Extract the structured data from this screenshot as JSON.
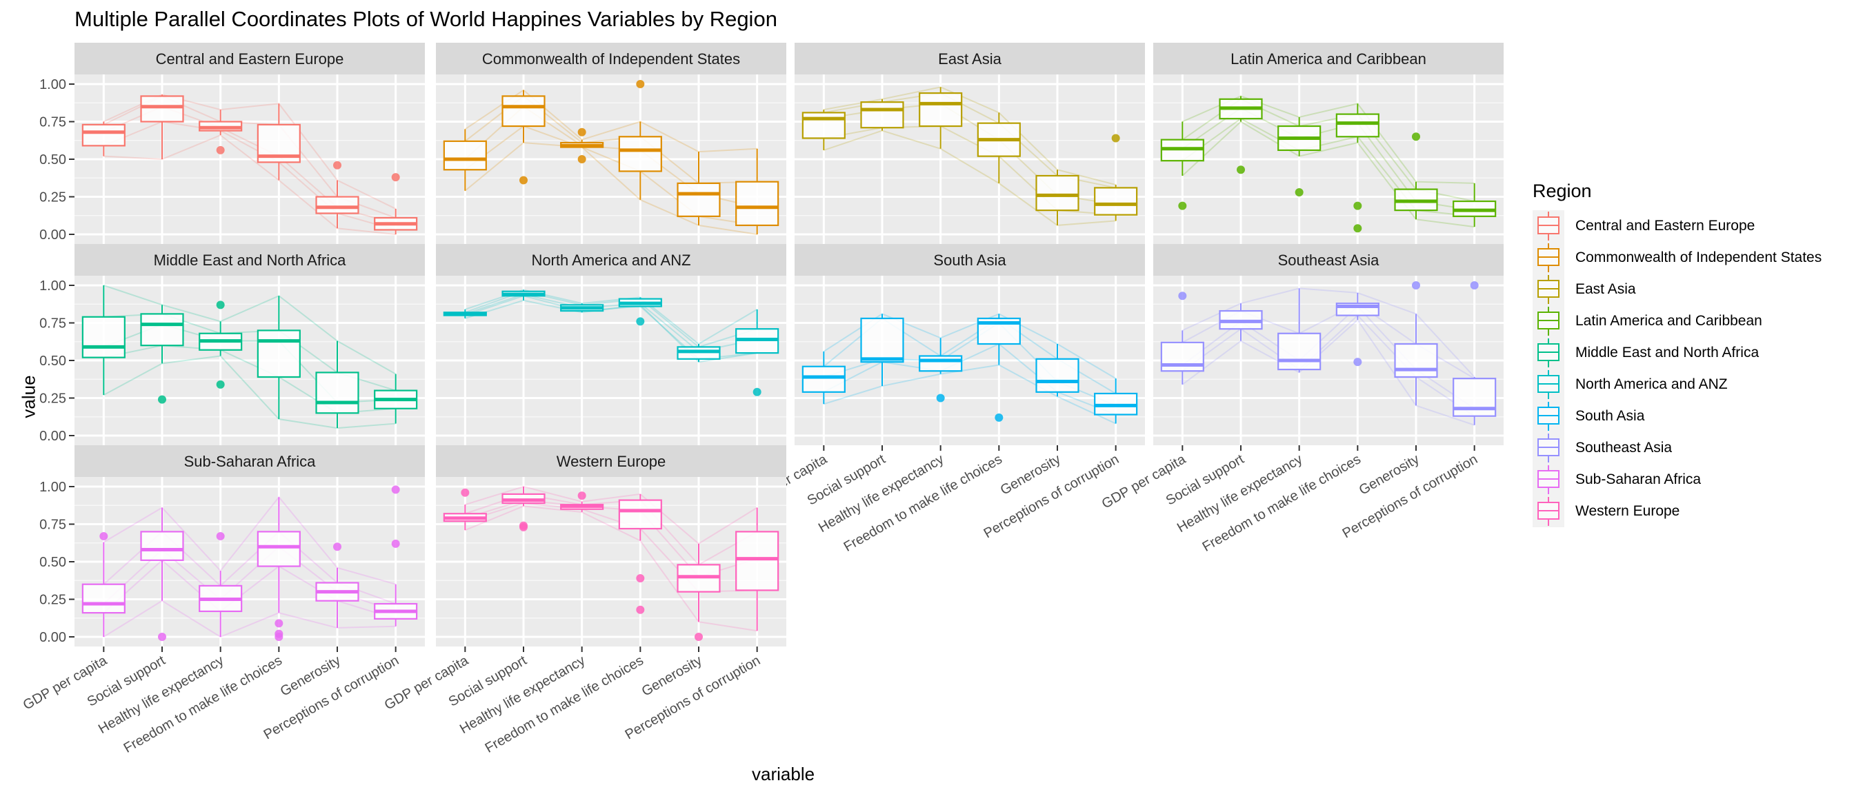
{
  "chart_data": {
    "type": "box",
    "title": "Multiple Parallel Coordinates Plots of World Happines Variables by Region",
    "xlabel": "variable",
    "ylabel": "value",
    "ylim": [
      0,
      1
    ],
    "yticks": [
      "0.00",
      "0.25",
      "0.50",
      "0.75",
      "1.00"
    ],
    "categories": [
      "GDP per capita",
      "Social support",
      "Healthy life expectancy",
      "Freedom to make life choices",
      "Generosity",
      "Perceptions of corruption"
    ],
    "legend": {
      "title": "Region",
      "position": "right"
    },
    "grid": true,
    "facets": [
      {
        "name": "Central and Eastern Europe",
        "color": "#F8766D",
        "boxes": [
          {
            "lo": 0.52,
            "q1": 0.59,
            "med": 0.68,
            "q3": 0.73,
            "hi": 0.75,
            "out": []
          },
          {
            "lo": 0.5,
            "q1": 0.75,
            "med": 0.85,
            "q3": 0.92,
            "hi": 0.93,
            "out": []
          },
          {
            "lo": 0.66,
            "q1": 0.69,
            "med": 0.71,
            "q3": 0.75,
            "hi": 0.83,
            "out": [
              0.56
            ]
          },
          {
            "lo": 0.36,
            "q1": 0.48,
            "med": 0.52,
            "q3": 0.73,
            "hi": 0.87,
            "out": []
          },
          {
            "lo": 0.04,
            "q1": 0.14,
            "med": 0.18,
            "q3": 0.25,
            "hi": 0.36,
            "out": [
              0.46
            ]
          },
          {
            "lo": 0.0,
            "q1": 0.03,
            "med": 0.07,
            "q3": 0.11,
            "hi": 0.17,
            "out": [
              0.38
            ]
          }
        ]
      },
      {
        "name": "Commonwealth of Independent States",
        "color": "#DE8C00",
        "boxes": [
          {
            "lo": 0.29,
            "q1": 0.43,
            "med": 0.5,
            "q3": 0.62,
            "hi": 0.7,
            "out": []
          },
          {
            "lo": 0.61,
            "q1": 0.72,
            "med": 0.85,
            "q3": 0.92,
            "hi": 0.96,
            "out": [
              0.36
            ]
          },
          {
            "lo": 0.58,
            "q1": 0.58,
            "med": 0.59,
            "q3": 0.61,
            "hi": 0.63,
            "out": [
              0.68,
              0.5
            ]
          },
          {
            "lo": 0.23,
            "q1": 0.42,
            "med": 0.56,
            "q3": 0.65,
            "hi": 0.75,
            "out": [
              1.0
            ]
          },
          {
            "lo": 0.06,
            "q1": 0.12,
            "med": 0.27,
            "q3": 0.34,
            "hi": 0.55,
            "out": []
          },
          {
            "lo": 0.0,
            "q1": 0.06,
            "med": 0.18,
            "q3": 0.35,
            "hi": 0.57,
            "out": []
          }
        ]
      },
      {
        "name": "East Asia",
        "color": "#B79F00",
        "boxes": [
          {
            "lo": 0.56,
            "q1": 0.64,
            "med": 0.77,
            "q3": 0.81,
            "hi": 0.83,
            "out": []
          },
          {
            "lo": 0.69,
            "q1": 0.71,
            "med": 0.83,
            "q3": 0.88,
            "hi": 0.9,
            "out": []
          },
          {
            "lo": 0.57,
            "q1": 0.72,
            "med": 0.87,
            "q3": 0.94,
            "hi": 0.98,
            "out": []
          },
          {
            "lo": 0.34,
            "q1": 0.52,
            "med": 0.63,
            "q3": 0.74,
            "hi": 0.81,
            "out": []
          },
          {
            "lo": 0.06,
            "q1": 0.16,
            "med": 0.26,
            "q3": 0.39,
            "hi": 0.43,
            "out": []
          },
          {
            "lo": 0.09,
            "q1": 0.13,
            "med": 0.2,
            "q3": 0.31,
            "hi": 0.33,
            "out": [
              0.64
            ]
          }
        ]
      },
      {
        "name": "Latin America and Caribbean",
        "color": "#5BB300",
        "boxes": [
          {
            "lo": 0.39,
            "q1": 0.49,
            "med": 0.57,
            "q3": 0.63,
            "hi": 0.75,
            "out": [
              0.19
            ]
          },
          {
            "lo": 0.75,
            "q1": 0.77,
            "med": 0.84,
            "q3": 0.9,
            "hi": 0.92,
            "out": [
              0.43
            ]
          },
          {
            "lo": 0.52,
            "q1": 0.56,
            "med": 0.64,
            "q3": 0.72,
            "hi": 0.78,
            "out": [
              0.28
            ]
          },
          {
            "lo": 0.61,
            "q1": 0.65,
            "med": 0.74,
            "q3": 0.8,
            "hi": 0.87,
            "out": [
              0.19,
              0.04
            ]
          },
          {
            "lo": 0.1,
            "q1": 0.16,
            "med": 0.22,
            "q3": 0.3,
            "hi": 0.35,
            "out": [
              0.65
            ]
          },
          {
            "lo": 0.05,
            "q1": 0.12,
            "med": 0.16,
            "q3": 0.22,
            "hi": 0.34,
            "out": []
          }
        ]
      },
      {
        "name": "Middle East and North Africa",
        "color": "#00C08B",
        "boxes": [
          {
            "lo": 0.27,
            "q1": 0.52,
            "med": 0.59,
            "q3": 0.79,
            "hi": 1.0,
            "out": []
          },
          {
            "lo": 0.48,
            "q1": 0.6,
            "med": 0.74,
            "q3": 0.81,
            "hi": 0.87,
            "out": [
              0.24
            ]
          },
          {
            "lo": 0.53,
            "q1": 0.57,
            "med": 0.63,
            "q3": 0.68,
            "hi": 0.76,
            "out": [
              0.87,
              0.34
            ]
          },
          {
            "lo": 0.11,
            "q1": 0.39,
            "med": 0.63,
            "q3": 0.7,
            "hi": 0.93,
            "out": []
          },
          {
            "lo": 0.05,
            "q1": 0.15,
            "med": 0.22,
            "q3": 0.42,
            "hi": 0.63,
            "out": []
          },
          {
            "lo": 0.08,
            "q1": 0.18,
            "med": 0.24,
            "q3": 0.3,
            "hi": 0.41,
            "out": []
          }
        ]
      },
      {
        "name": "North America and ANZ",
        "color": "#00BFC4",
        "boxes": [
          {
            "lo": 0.78,
            "q1": 0.8,
            "med": 0.81,
            "q3": 0.82,
            "hi": 0.84,
            "out": []
          },
          {
            "lo": 0.9,
            "q1": 0.93,
            "med": 0.94,
            "q3": 0.96,
            "hi": 0.97,
            "out": []
          },
          {
            "lo": 0.82,
            "q1": 0.83,
            "med": 0.85,
            "q3": 0.87,
            "hi": 0.88,
            "out": []
          },
          {
            "lo": 0.87,
            "q1": 0.86,
            "med": 0.88,
            "q3": 0.91,
            "hi": 0.92,
            "out": [
              0.76
            ]
          },
          {
            "lo": 0.49,
            "q1": 0.51,
            "med": 0.56,
            "q3": 0.59,
            "hi": 0.61,
            "out": []
          },
          {
            "lo": 0.55,
            "q1": 0.55,
            "med": 0.64,
            "q3": 0.71,
            "hi": 0.84,
            "out": [
              0.29
            ]
          }
        ]
      },
      {
        "name": "South Asia",
        "color": "#00B4F0",
        "boxes": [
          {
            "lo": 0.21,
            "q1": 0.29,
            "med": 0.39,
            "q3": 0.46,
            "hi": 0.56,
            "out": []
          },
          {
            "lo": 0.33,
            "q1": 0.49,
            "med": 0.51,
            "q3": 0.78,
            "hi": 0.81,
            "out": []
          },
          {
            "lo": 0.41,
            "q1": 0.43,
            "med": 0.5,
            "q3": 0.53,
            "hi": 0.65,
            "out": [
              0.25
            ]
          },
          {
            "lo": 0.47,
            "q1": 0.61,
            "med": 0.75,
            "q3": 0.78,
            "hi": 0.81,
            "out": [
              0.12
            ]
          },
          {
            "lo": 0.26,
            "q1": 0.29,
            "med": 0.36,
            "q3": 0.51,
            "hi": 0.61,
            "out": []
          },
          {
            "lo": 0.08,
            "q1": 0.14,
            "med": 0.2,
            "q3": 0.28,
            "hi": 0.38,
            "out": []
          }
        ]
      },
      {
        "name": "Southeast Asia",
        "color": "#9590FF",
        "boxes": [
          {
            "lo": 0.34,
            "q1": 0.43,
            "med": 0.47,
            "q3": 0.62,
            "hi": 0.7,
            "out": [
              0.93
            ]
          },
          {
            "lo": 0.63,
            "q1": 0.71,
            "med": 0.76,
            "q3": 0.83,
            "hi": 0.88,
            "out": []
          },
          {
            "lo": 0.42,
            "q1": 0.44,
            "med": 0.5,
            "q3": 0.68,
            "hi": 0.98,
            "out": []
          },
          {
            "lo": 0.77,
            "q1": 0.8,
            "med": 0.86,
            "q3": 0.88,
            "hi": 0.95,
            "out": [
              0.49
            ]
          },
          {
            "lo": 0.2,
            "q1": 0.39,
            "med": 0.44,
            "q3": 0.61,
            "hi": 0.81,
            "out": [
              1.0
            ]
          },
          {
            "lo": 0.07,
            "q1": 0.13,
            "med": 0.18,
            "q3": 0.38,
            "hi": 0.39,
            "out": [
              1.0
            ]
          }
        ]
      },
      {
        "name": "Sub-Saharan Africa",
        "color": "#E76BF3",
        "boxes": [
          {
            "lo": 0.0,
            "q1": 0.16,
            "med": 0.22,
            "q3": 0.35,
            "hi": 0.63,
            "out": [
              0.67
            ]
          },
          {
            "lo": 0.24,
            "q1": 0.51,
            "med": 0.58,
            "q3": 0.7,
            "hi": 0.86,
            "out": [
              0.0
            ]
          },
          {
            "lo": 0.0,
            "q1": 0.17,
            "med": 0.25,
            "q3": 0.34,
            "hi": 0.44,
            "out": [
              0.67
            ]
          },
          {
            "lo": 0.16,
            "q1": 0.47,
            "med": 0.6,
            "q3": 0.7,
            "hi": 0.93,
            "out": [
              0.09,
              0.02,
              0.0
            ]
          },
          {
            "lo": 0.06,
            "q1": 0.24,
            "med": 0.3,
            "q3": 0.36,
            "hi": 0.46,
            "out": [
              0.6
            ]
          },
          {
            "lo": 0.07,
            "q1": 0.12,
            "med": 0.17,
            "q3": 0.22,
            "hi": 0.35,
            "out": [
              0.98,
              0.62
            ]
          }
        ]
      },
      {
        "name": "Western Europe",
        "color": "#FF62BC",
        "boxes": [
          {
            "lo": 0.71,
            "q1": 0.77,
            "med": 0.79,
            "q3": 0.82,
            "hi": 0.88,
            "out": [
              0.96
            ]
          },
          {
            "lo": 0.87,
            "q1": 0.89,
            "med": 0.91,
            "q3": 0.95,
            "hi": 1.0,
            "out": [
              0.73,
              0.74
            ]
          },
          {
            "lo": 0.83,
            "q1": 0.85,
            "med": 0.87,
            "q3": 0.88,
            "hi": 0.9,
            "out": [
              0.94
            ]
          },
          {
            "lo": 0.64,
            "q1": 0.72,
            "med": 0.84,
            "q3": 0.91,
            "hi": 0.95,
            "out": [
              0.39,
              0.18
            ]
          },
          {
            "lo": 0.1,
            "q1": 0.3,
            "med": 0.4,
            "q3": 0.48,
            "hi": 0.62,
            "out": [
              0.0
            ]
          },
          {
            "lo": 0.04,
            "q1": 0.31,
            "med": 0.52,
            "q3": 0.7,
            "hi": 0.86,
            "out": []
          }
        ]
      }
    ]
  }
}
